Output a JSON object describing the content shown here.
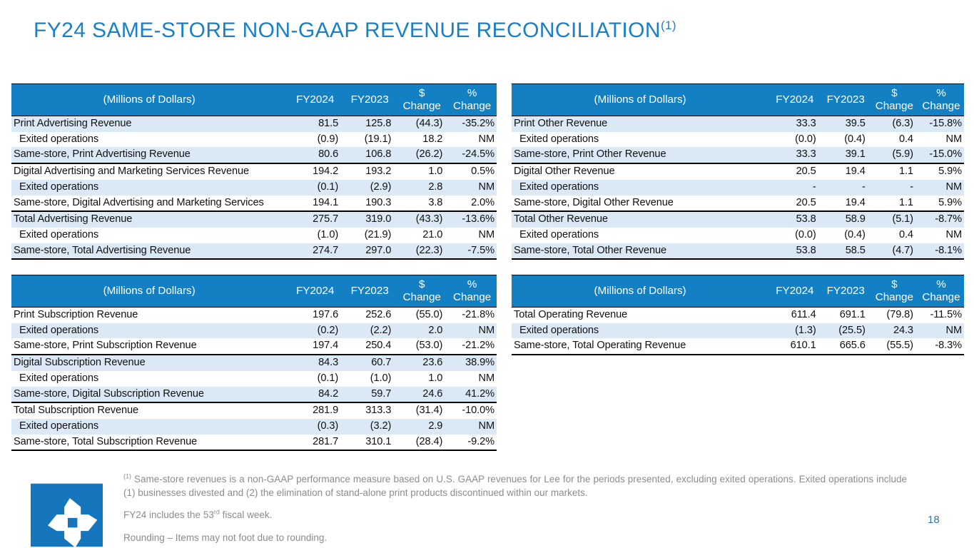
{
  "slide": {
    "title": "FY24 SAME-STORE NON-GAAP REVENUE RECONCILIATION",
    "title_superscript": "(1)",
    "page_number": "18"
  },
  "colors": {
    "title_blue": "#1B7FC4",
    "table_header_blue": "#1480C4",
    "row_band_blue": "#DBE9F6",
    "logo_blue": "#1576BD",
    "footnote_gray": "#8C8C8C",
    "page_number_blue": "#2E74B5"
  },
  "tables": [
    {
      "name": "advertising-revenue",
      "first_row_shaded": true,
      "columns": [
        [
          "(Millions of Dollars)"
        ],
        [
          "FY2024"
        ],
        [
          "FY2023"
        ],
        [
          "$",
          "Change"
        ],
        [
          "%",
          "Change"
        ]
      ],
      "rows": [
        {
          "label": "Print Advertising Revenue",
          "indent": false,
          "values": [
            "81.5",
            "125.8",
            "(44.3)",
            "-35.2%"
          ]
        },
        {
          "label": "Exited operations",
          "indent": true,
          "values": [
            "(0.9)",
            "(19.1)",
            "18.2",
            "NM"
          ]
        },
        {
          "label": "Same-store, Print Advertising Revenue",
          "indent": false,
          "values": [
            "80.6",
            "106.8",
            "(26.2)",
            "-24.5%"
          ]
        },
        {
          "label": "Digital Advertising and Marketing Services Revenue",
          "indent": false,
          "values": [
            "194.2",
            "193.2",
            "1.0",
            "0.5%"
          ]
        },
        {
          "label": "Exited operations",
          "indent": true,
          "values": [
            "(0.1)",
            "(2.9)",
            "2.8",
            "NM"
          ]
        },
        {
          "label": "Same-store, Digital Advertising and Marketing Services",
          "indent": false,
          "values": [
            "194.1",
            "190.3",
            "3.8",
            "2.0%"
          ]
        },
        {
          "label": "Total Advertising Revenue",
          "indent": false,
          "values": [
            "275.7",
            "319.0",
            "(43.3)",
            "-13.6%"
          ]
        },
        {
          "label": "Exited operations",
          "indent": true,
          "values": [
            "(1.0)",
            "(21.9)",
            "21.0",
            "NM"
          ]
        },
        {
          "label": "Same-store, Total Advertising Revenue",
          "indent": false,
          "values": [
            "274.7",
            "297.0",
            "(22.3)",
            "-7.5%"
          ]
        }
      ]
    },
    {
      "name": "other-revenue",
      "first_row_shaded": true,
      "columns": [
        [
          "(Millions of Dollars)"
        ],
        [
          "FY2024"
        ],
        [
          "FY2023"
        ],
        [
          "$",
          "Change"
        ],
        [
          "%",
          "Change"
        ]
      ],
      "rows": [
        {
          "label": "Print Other Revenue",
          "indent": false,
          "values": [
            "33.3",
            "39.5",
            "(6.3)",
            "-15.8%"
          ]
        },
        {
          "label": "Exited operations",
          "indent": true,
          "values": [
            "(0.0)",
            "(0.4)",
            "0.4",
            "NM"
          ]
        },
        {
          "label": "Same-store, Print Other Revenue",
          "indent": false,
          "values": [
            "33.3",
            "39.1",
            "(5.9)",
            "-15.0%"
          ]
        },
        {
          "label": "Digital Other Revenue",
          "indent": false,
          "values": [
            "20.5",
            "19.4",
            "1.1",
            "5.9%"
          ]
        },
        {
          "label": "Exited operations",
          "indent": true,
          "values": [
            "-",
            "-",
            "-",
            "NM"
          ]
        },
        {
          "label": "Same-store, Digital Other Revenue",
          "indent": false,
          "values": [
            "20.5",
            "19.4",
            "1.1",
            "5.9%"
          ]
        },
        {
          "label": "Total Other Revenue",
          "indent": false,
          "values": [
            "53.8",
            "58.9",
            "(5.1)",
            "-8.7%"
          ]
        },
        {
          "label": "Exited operations",
          "indent": true,
          "values": [
            "(0.0)",
            "(0.4)",
            "0.4",
            "NM"
          ]
        },
        {
          "label": "Same-store, Total Other Revenue",
          "indent": false,
          "values": [
            "53.8",
            "58.5",
            "(4.7)",
            "-8.1%"
          ]
        }
      ]
    },
    {
      "name": "subscription-revenue",
      "first_row_shaded": false,
      "columns": [
        [
          "(Millions of Dollars)"
        ],
        [
          "FY2024"
        ],
        [
          "FY2023"
        ],
        [
          "$",
          "Change"
        ],
        [
          "%",
          "Change"
        ]
      ],
      "rows": [
        {
          "label": "Print Subscription Revenue",
          "indent": false,
          "values": [
            "197.6",
            "252.6",
            "(55.0)",
            "-21.8%"
          ]
        },
        {
          "label": "Exited operations",
          "indent": true,
          "values": [
            "(0.2)",
            "(2.2)",
            "2.0",
            "NM"
          ]
        },
        {
          "label": "Same-store, Print Subscription Revenue",
          "indent": false,
          "values": [
            "197.4",
            "250.4",
            "(53.0)",
            "-21.2%"
          ]
        },
        {
          "label": "Digital Subscription Revenue",
          "indent": false,
          "values": [
            "84.3",
            "60.7",
            "23.6",
            "38.9%"
          ]
        },
        {
          "label": "Exited operations",
          "indent": true,
          "values": [
            "(0.1)",
            "(1.0)",
            "1.0",
            "NM"
          ]
        },
        {
          "label": "Same-store, Digital Subscription Revenue",
          "indent": false,
          "values": [
            "84.2",
            "59.7",
            "24.6",
            "41.2%"
          ]
        },
        {
          "label": "Total Subscription Revenue",
          "indent": false,
          "values": [
            "281.9",
            "313.3",
            "(31.4)",
            "-10.0%"
          ]
        },
        {
          "label": "Exited operations",
          "indent": true,
          "values": [
            "(0.3)",
            "(3.2)",
            "2.9",
            "NM"
          ]
        },
        {
          "label": "Same-store, Total Subscription Revenue",
          "indent": false,
          "values": [
            "281.7",
            "310.1",
            "(28.4)",
            "-9.2%"
          ]
        }
      ]
    },
    {
      "name": "total-operating-revenue",
      "first_row_shaded": false,
      "columns": [
        [
          "(Millions of Dollars)"
        ],
        [
          "FY2024"
        ],
        [
          "FY2023"
        ],
        [
          "$",
          "Change"
        ],
        [
          "%",
          "Change"
        ]
      ],
      "rows": [
        {
          "label": "Total Operating Revenue",
          "indent": false,
          "values": [
            "611.4",
            "691.1",
            "(79.8)",
            "-11.5%"
          ]
        },
        {
          "label": "Exited operations",
          "indent": true,
          "values": [
            "(1.3)",
            "(25.5)",
            "24.3",
            "NM"
          ]
        },
        {
          "label": "Same-store, Total Operating Revenue",
          "indent": false,
          "values": [
            "610.1",
            "665.6",
            "(55.5)",
            "-8.3%"
          ]
        }
      ]
    }
  ],
  "footnotes": {
    "note1_superscript": "(1)",
    "note1": "Same-store revenues is a non-GAAP performance measure based on U.S. GAAP revenues for Lee for the periods presented, excluding exited operations. Exited operations include (1) businesses divested and (2) the elimination of stand-alone print products discontinued within our markets.",
    "note2_pre": "FY24 includes the 53",
    "note2_superscript": "rd",
    "note2_post": " fiscal week.",
    "note3": "Rounding – Items may not foot due to rounding."
  }
}
